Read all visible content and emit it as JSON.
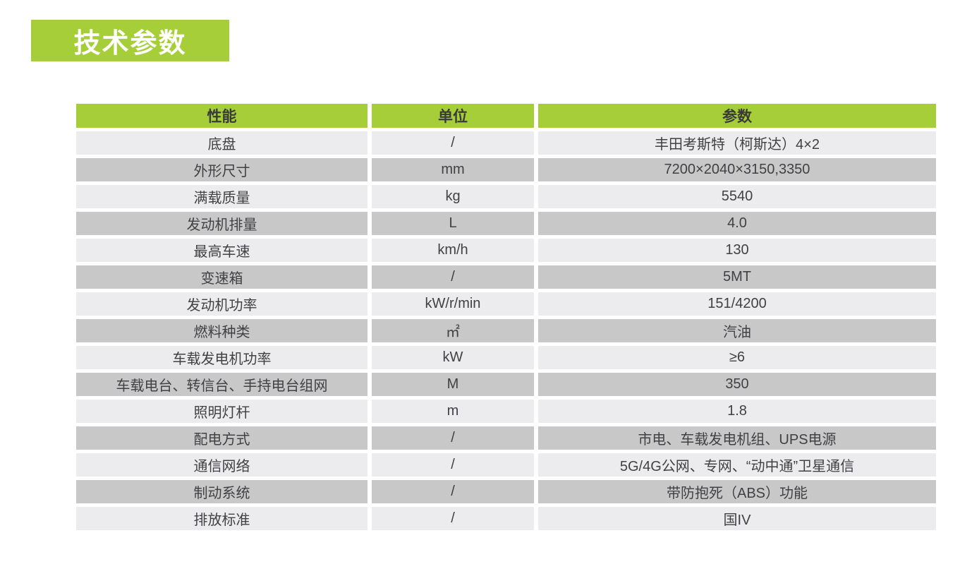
{
  "section": {
    "title": "技术参数"
  },
  "colors": {
    "accent_green": "#a6ce39",
    "row_light": "#ececee",
    "row_dark": "#c8c8c9",
    "header_text": "#3a3a3a",
    "cell_text": "#414144",
    "badge_text": "#ffffff"
  },
  "table": {
    "headers": [
      "性能",
      "单位",
      "参数"
    ],
    "rows": [
      {
        "name": "底盘",
        "unit": "/",
        "value": "丰田考斯特（柯斯达）4×2"
      },
      {
        "name": "外形尺寸",
        "unit": "mm",
        "value": "7200×2040×3150,3350"
      },
      {
        "name": "满载质量",
        "unit": "kg",
        "value": "5540"
      },
      {
        "name": "发动机排量",
        "unit": "L",
        "value": "4.0"
      },
      {
        "name": "最高车速",
        "unit": "km/h",
        "value": "130"
      },
      {
        "name": "变速箱",
        "unit": "/",
        "value": "5MT"
      },
      {
        "name": "发动机功率",
        "unit": "kW/r/min",
        "value": "151/4200"
      },
      {
        "name": "燃料种类",
        "unit": "㎡",
        "value": "汽油"
      },
      {
        "name": "车载发电机功率",
        "unit": "kW",
        "value": "≥6"
      },
      {
        "name": "车载电台、转信台、手持电台组网",
        "unit": "M",
        "value": "350"
      },
      {
        "name": "照明灯杆",
        "unit": "m",
        "value": "1.8"
      },
      {
        "name": "配电方式",
        "unit": "/",
        "value": "市电、车载发电机组、UPS电源"
      },
      {
        "name": "通信网络",
        "unit": "/",
        "value": "5G/4G公网、专网、“动中通”卫星通信"
      },
      {
        "name": "制动系统",
        "unit": "/",
        "value": "带防抱死（ABS）功能"
      },
      {
        "name": "排放标准",
        "unit": "/",
        "value": "国IV"
      }
    ]
  }
}
